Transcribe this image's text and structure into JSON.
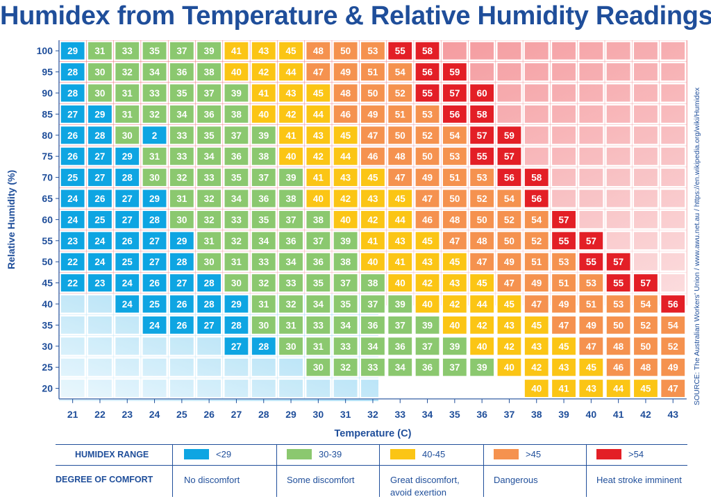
{
  "title": "Humidex from Temperature & Relative Humidity Readings",
  "source": "SOURCE: The Australian Workers' Union / www.awu.net.au / https://en.wikipedia.org/wiki/Humidex",
  "colors": {
    "blue": "#0ea5e2",
    "green": "#8bc86f",
    "yellow": "#fbc515",
    "orange": "#f5924f",
    "red": "#e31f26",
    "axis": "#1f4e9a"
  },
  "chart_data": {
    "type": "heatmap",
    "xlabel": "Temperature (C)",
    "ylabel": "Relative Humidity (%)",
    "x": [
      21,
      22,
      23,
      24,
      25,
      26,
      27,
      28,
      29,
      30,
      31,
      32,
      33,
      34,
      35,
      36,
      37,
      38,
      39,
      40,
      41,
      42,
      43
    ],
    "y": [
      100,
      95,
      90,
      85,
      80,
      75,
      70,
      65,
      60,
      55,
      50,
      45,
      40,
      35,
      30,
      25,
      20
    ],
    "values": [
      [
        29,
        31,
        33,
        35,
        37,
        39,
        41,
        43,
        45,
        48,
        50,
        53,
        55,
        58,
        null,
        null,
        null,
        null,
        null,
        null,
        null,
        null,
        null
      ],
      [
        28,
        30,
        32,
        34,
        36,
        38,
        40,
        42,
        44,
        47,
        49,
        51,
        54,
        56,
        59,
        null,
        null,
        null,
        null,
        null,
        null,
        null,
        null
      ],
      [
        28,
        30,
        31,
        33,
        35,
        37,
        39,
        41,
        43,
        45,
        48,
        50,
        52,
        55,
        57,
        60,
        null,
        null,
        null,
        null,
        null,
        null,
        null
      ],
      [
        27,
        29,
        31,
        32,
        34,
        36,
        38,
        40,
        42,
        44,
        46,
        49,
        51,
        53,
        56,
        58,
        null,
        null,
        null,
        null,
        null,
        null,
        null
      ],
      [
        26,
        28,
        30,
        2,
        33,
        35,
        37,
        39,
        41,
        43,
        45,
        47,
        50,
        52,
        54,
        57,
        59,
        null,
        null,
        null,
        null,
        null,
        null
      ],
      [
        26,
        27,
        29,
        31,
        33,
        34,
        36,
        38,
        40,
        42,
        44,
        46,
        48,
        50,
        53,
        55,
        57,
        null,
        null,
        null,
        null,
        null,
        null
      ],
      [
        25,
        27,
        28,
        30,
        32,
        33,
        35,
        37,
        39,
        41,
        43,
        45,
        47,
        49,
        51,
        53,
        56,
        58,
        null,
        null,
        null,
        null,
        null
      ],
      [
        24,
        26,
        27,
        29,
        31,
        32,
        34,
        36,
        38,
        40,
        42,
        43,
        45,
        47,
        50,
        52,
        54,
        56,
        null,
        null,
        null,
        null,
        null
      ],
      [
        24,
        25,
        27,
        28,
        30,
        32,
        33,
        35,
        37,
        38,
        40,
        42,
        44,
        46,
        48,
        50,
        52,
        54,
        57,
        null,
        null,
        null,
        null
      ],
      [
        23,
        24,
        26,
        27,
        29,
        31,
        32,
        34,
        36,
        37,
        39,
        41,
        43,
        45,
        47,
        48,
        50,
        52,
        55,
        57,
        null,
        null,
        null
      ],
      [
        22,
        24,
        25,
        27,
        28,
        30,
        31,
        33,
        34,
        36,
        38,
        40,
        41,
        43,
        45,
        47,
        49,
        51,
        53,
        55,
        57,
        null,
        null
      ],
      [
        22,
        23,
        24,
        26,
        27,
        28,
        30,
        32,
        33,
        35,
        37,
        38,
        40,
        42,
        43,
        45,
        47,
        49,
        51,
        53,
        55,
        57,
        null
      ],
      [
        null,
        null,
        24,
        25,
        26,
        28,
        29,
        31,
        32,
        34,
        35,
        37,
        39,
        40,
        42,
        44,
        45,
        47,
        49,
        51,
        53,
        54,
        56
      ],
      [
        null,
        null,
        null,
        24,
        26,
        27,
        28,
        30,
        31,
        33,
        34,
        36,
        37,
        39,
        40,
        42,
        43,
        45,
        47,
        49,
        50,
        52,
        54
      ],
      [
        null,
        null,
        null,
        null,
        null,
        null,
        27,
        28,
        30,
        31,
        33,
        34,
        36,
        37,
        39,
        40,
        42,
        43,
        45,
        47,
        48,
        50,
        52
      ],
      [
        null,
        null,
        null,
        null,
        null,
        null,
        null,
        null,
        null,
        30,
        32,
        33,
        34,
        36,
        37,
        39,
        40,
        42,
        43,
        45,
        46,
        48,
        49
      ],
      [
        null,
        null,
        null,
        null,
        null,
        null,
        null,
        null,
        null,
        null,
        null,
        null,
        null,
        null,
        null,
        null,
        null,
        40,
        41,
        43,
        44,
        45,
        47
      ]
    ],
    "color_ranges": [
      {
        "label": "<29",
        "color": "blue",
        "min": null,
        "max": 29
      },
      {
        "label": "30-39",
        "color": "green",
        "min": 30,
        "max": 39
      },
      {
        "label": "40-45",
        "color": "yellow",
        "min": 40,
        "max": 45
      },
      {
        "label": ">45",
        "color": "orange",
        "min": 46,
        "max": 54
      },
      {
        "label": ">54",
        "color": "red",
        "min": 55,
        "max": null
      }
    ]
  },
  "legend": {
    "range_heading": "HUMIDEX RANGE",
    "comfort_heading": "DEGREE OF COMFORT",
    "items": [
      {
        "label": "<29",
        "color": "blue",
        "comfort": "No discomfort"
      },
      {
        "label": "30-39",
        "color": "green",
        "comfort": "Some discomfort"
      },
      {
        "label": "40-45",
        "color": "yellow",
        "comfort": "Great discomfort, avoid exertion"
      },
      {
        "label": ">45",
        "color": "orange",
        "comfort": "Dangerous"
      },
      {
        "label": ">54",
        "color": "red",
        "comfort": "Heat stroke imminent"
      }
    ]
  }
}
